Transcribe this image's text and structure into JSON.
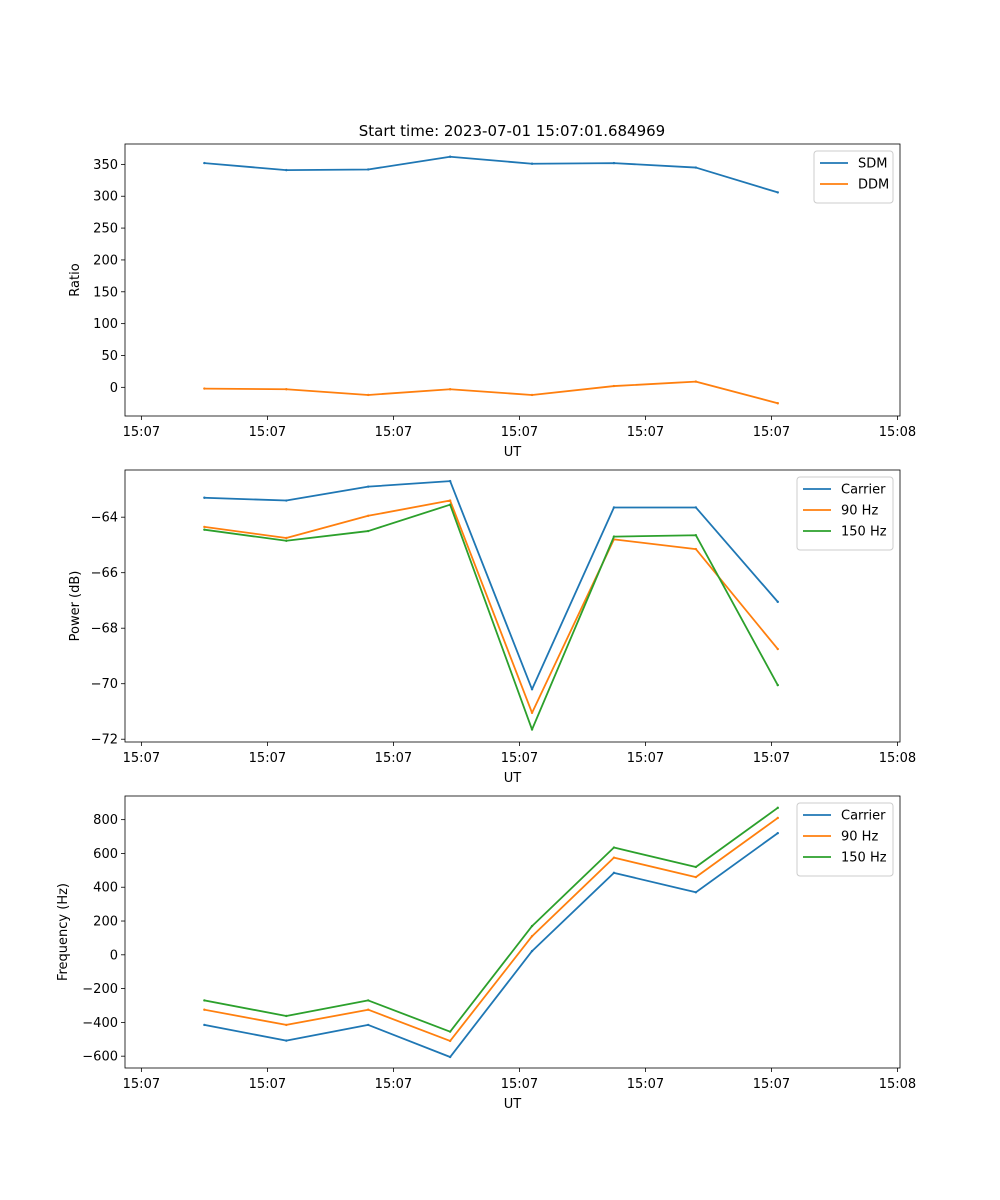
{
  "figure_title": "Start time: 2023-07-01 15:07:01.684969",
  "chart_data": [
    {
      "type": "line",
      "title": "Start time: 2023-07-01 15:07:01.684969",
      "xlabel": "UT",
      "ylabel": "Ratio",
      "x_tick_labels": [
        "15:07",
        "15:07",
        "15:07",
        "15:07",
        "15:07",
        "15:07",
        "15:08"
      ],
      "x_tick_values": [
        0,
        1,
        2,
        3,
        4,
        5,
        6
      ],
      "x": [
        0.5,
        1.15,
        1.8,
        2.45,
        3.1,
        3.75,
        4.4,
        5.05
      ],
      "xlim": [
        -0.13,
        6.02
      ],
      "ylim": [
        -45,
        382
      ],
      "yticks": [
        0,
        50,
        100,
        150,
        200,
        250,
        300,
        350
      ],
      "legend_position": "upper-right",
      "series": [
        {
          "name": "SDM",
          "color": "#1f77b4",
          "values": [
            352,
            341,
            342,
            362,
            351,
            352,
            345,
            306
          ]
        },
        {
          "name": "DDM",
          "color": "#ff7f0e",
          "values": [
            -2,
            -3,
            -12,
            -3,
            -12,
            2,
            9,
            -25
          ]
        }
      ]
    },
    {
      "type": "line",
      "title": "",
      "xlabel": "UT",
      "ylabel": "Power (dB)",
      "x_tick_labels": [
        "15:07",
        "15:07",
        "15:07",
        "15:07",
        "15:07",
        "15:07",
        "15:08"
      ],
      "x_tick_values": [
        0,
        1,
        2,
        3,
        4,
        5,
        6
      ],
      "x": [
        0.5,
        1.15,
        1.8,
        2.45,
        3.1,
        3.75,
        4.4,
        5.05
      ],
      "xlim": [
        -0.13,
        6.02
      ],
      "ylim": [
        -72.1,
        -62.3
      ],
      "yticks": [
        -72,
        -70,
        -68,
        -66,
        -64
      ],
      "legend_position": "upper-right",
      "series": [
        {
          "name": "Carrier",
          "color": "#1f77b4",
          "values": [
            -63.3,
            -63.4,
            -62.9,
            -62.7,
            -70.2,
            -63.65,
            -63.65,
            -67.05
          ]
        },
        {
          "name": "90 Hz",
          "color": "#ff7f0e",
          "values": [
            -64.35,
            -64.75,
            -63.95,
            -63.4,
            -71.05,
            -64.8,
            -65.15,
            -68.75
          ]
        },
        {
          "name": "150 Hz",
          "color": "#2ca02c",
          "values": [
            -64.45,
            -64.85,
            -64.5,
            -63.55,
            -71.65,
            -64.7,
            -64.65,
            -70.05
          ]
        }
      ]
    },
    {
      "type": "line",
      "title": "",
      "xlabel": "UT",
      "ylabel": "Frequency (Hz)",
      "x_tick_labels": [
        "15:07",
        "15:07",
        "15:07",
        "15:07",
        "15:07",
        "15:07",
        "15:08"
      ],
      "x_tick_values": [
        0,
        1,
        2,
        3,
        4,
        5,
        6
      ],
      "x": [
        0.5,
        1.15,
        1.8,
        2.45,
        3.1,
        3.75,
        4.4,
        5.05
      ],
      "xlim": [
        -0.13,
        6.02
      ],
      "ylim": [
        -670,
        940
      ],
      "yticks": [
        -600,
        -400,
        -200,
        0,
        200,
        400,
        600,
        800
      ],
      "legend_position": "upper-right",
      "series": [
        {
          "name": "Carrier",
          "color": "#1f77b4",
          "values": [
            -415,
            -508,
            -415,
            -605,
            22,
            485,
            370,
            720
          ]
        },
        {
          "name": "90 Hz",
          "color": "#ff7f0e",
          "values": [
            -325,
            -415,
            -325,
            -510,
            110,
            575,
            460,
            810
          ]
        },
        {
          "name": "150 Hz",
          "color": "#2ca02c",
          "values": [
            -270,
            -362,
            -270,
            -455,
            170,
            635,
            520,
            870
          ]
        }
      ]
    }
  ]
}
